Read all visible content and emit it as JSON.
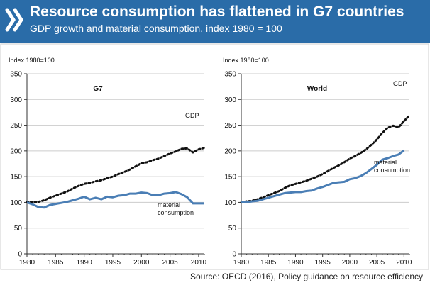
{
  "header": {
    "title": "Resource consumption has flattened in G7 countries",
    "subtitle": "GDP growth and material consumption, index 1980 = 100"
  },
  "source": "Source: OECD (2016), Policy guidance on resource efficiency",
  "colors": {
    "header_bg": "#2a6ca8",
    "gdp": "#111111",
    "material": "#4a7eb5"
  },
  "chart_data": [
    {
      "type": "line",
      "title": "G7",
      "ylabel": "Index 1980=100",
      "ylim": [
        0,
        350
      ],
      "yticks": [
        0,
        50,
        100,
        150,
        200,
        250,
        300,
        350
      ],
      "xlim": [
        1980,
        2011
      ],
      "xticks": [
        1980,
        1985,
        1990,
        1995,
        2000,
        2005,
        2010
      ],
      "series": [
        {
          "name": "GDP",
          "style": "dotted",
          "x": [
            1980,
            1981,
            1982,
            1983,
            1984,
            1985,
            1986,
            1987,
            1988,
            1989,
            1990,
            1991,
            1992,
            1993,
            1994,
            1995,
            1996,
            1997,
            1998,
            1999,
            2000,
            2001,
            2002,
            2003,
            2004,
            2005,
            2006,
            2007,
            2008,
            2009,
            2010,
            2011
          ],
          "values": [
            100,
            101,
            101,
            104,
            109,
            113,
            117,
            121,
            127,
            132,
            136,
            138,
            141,
            143,
            147,
            150,
            155,
            159,
            164,
            170,
            176,
            178,
            182,
            185,
            190,
            195,
            199,
            204,
            205,
            197,
            203,
            206
          ]
        },
        {
          "name": "material consumption",
          "style": "solid",
          "x": [
            1980,
            1981,
            1982,
            1983,
            1984,
            1985,
            1986,
            1987,
            1988,
            1989,
            1990,
            1991,
            1992,
            1993,
            1994,
            1995,
            1996,
            1997,
            1998,
            1999,
            2000,
            2001,
            2002,
            2003,
            2004,
            2005,
            2006,
            2007,
            2008,
            2009,
            2010,
            2011
          ],
          "values": [
            100,
            96,
            91,
            90,
            95,
            97,
            99,
            101,
            104,
            107,
            111,
            106,
            109,
            106,
            111,
            110,
            113,
            114,
            117,
            117,
            119,
            118,
            114,
            114,
            117,
            118,
            120,
            116,
            110,
            98,
            98,
            98
          ]
        }
      ]
    },
    {
      "type": "line",
      "title": "World",
      "ylabel": "Index 1980=100",
      "ylim": [
        0,
        350
      ],
      "yticks": [
        0,
        50,
        100,
        150,
        200,
        250,
        300,
        350
      ],
      "xlim": [
        1980,
        2011
      ],
      "xticks": [
        1980,
        1985,
        1990,
        1995,
        2000,
        2005,
        2010
      ],
      "series": [
        {
          "name": "GDP",
          "style": "dotted",
          "x": [
            1980,
            1981,
            1982,
            1983,
            1984,
            1985,
            1986,
            1987,
            1988,
            1989,
            1990,
            1991,
            1992,
            1993,
            1994,
            1995,
            1996,
            1997,
            1998,
            1999,
            2000,
            2001,
            2002,
            2003,
            2004,
            2005,
            2006,
            2007,
            2008,
            2009,
            2010,
            2011
          ],
          "values": [
            100,
            102,
            103,
            106,
            110,
            114,
            118,
            122,
            128,
            133,
            136,
            139,
            142,
            146,
            150,
            155,
            161,
            167,
            172,
            178,
            185,
            190,
            196,
            203,
            212,
            222,
            235,
            245,
            249,
            246,
            258,
            269
          ]
        },
        {
          "name": "material consumption",
          "style": "solid",
          "x": [
            1980,
            1981,
            1982,
            1983,
            1984,
            1985,
            1986,
            1987,
            1988,
            1989,
            1990,
            1991,
            1992,
            1993,
            1994,
            1995,
            1996,
            1997,
            1998,
            1999,
            2000,
            2001,
            2002,
            2003,
            2004,
            2005,
            2006,
            2007,
            2008,
            2009,
            2010
          ],
          "values": [
            100,
            100,
            102,
            103,
            106,
            109,
            112,
            115,
            118,
            119,
            120,
            120,
            122,
            123,
            127,
            130,
            134,
            138,
            139,
            140,
            145,
            147,
            151,
            157,
            165,
            173,
            183,
            186,
            190,
            193,
            201
          ]
        }
      ]
    }
  ]
}
